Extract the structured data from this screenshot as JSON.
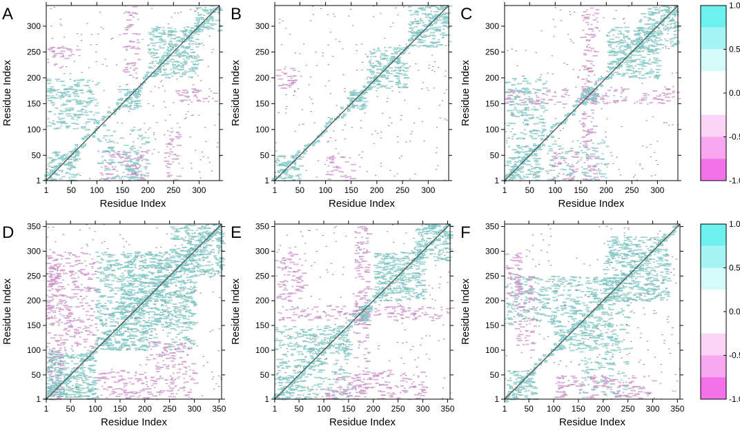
{
  "figure": {
    "colorbars": [
      {
        "ticks": [
          {
            "value": 1.0,
            "label": "1.0"
          },
          {
            "value": 0.5,
            "label": "0.5"
          },
          {
            "value": 0.0,
            "label": "0.0"
          },
          {
            "value": -0.5,
            "label": "-0.5"
          },
          {
            "value": -1.0,
            "label": "-1.0"
          }
        ],
        "bands": [
          {
            "from": 0.75,
            "to": 1.0,
            "color": "#6ef0ef"
          },
          {
            "from": 0.5,
            "to": 0.75,
            "color": "#a3f4f3"
          },
          {
            "from": 0.25,
            "to": 0.5,
            "color": "#d4faf9"
          },
          {
            "from": -0.25,
            "to": 0.25,
            "color": "#ffffff"
          },
          {
            "from": -0.5,
            "to": -0.25,
            "color": "#fbd3f7"
          },
          {
            "from": -0.75,
            "to": -0.5,
            "color": "#f7a6ef"
          },
          {
            "from": -1.0,
            "to": -0.75,
            "color": "#f371ea"
          }
        ]
      },
      {
        "ticks": [
          {
            "value": 1.0,
            "label": "1.0"
          },
          {
            "value": 0.5,
            "label": "0.5"
          },
          {
            "value": 0.0,
            "label": "0.0"
          },
          {
            "value": -0.5,
            "label": "-0.5"
          },
          {
            "value": -1.0,
            "label": "-1.0"
          }
        ],
        "bands": [
          {
            "from": 0.75,
            "to": 1.0,
            "color": "#6ef0ef"
          },
          {
            "from": 0.5,
            "to": 0.75,
            "color": "#a3f4f3"
          },
          {
            "from": 0.25,
            "to": 0.5,
            "color": "#d4faf9"
          },
          {
            "from": -0.25,
            "to": 0.25,
            "color": "#ffffff"
          },
          {
            "from": -0.5,
            "to": -0.25,
            "color": "#fbd3f7"
          },
          {
            "from": -0.75,
            "to": -0.5,
            "color": "#f7a6ef"
          },
          {
            "from": -1.0,
            "to": -0.75,
            "color": "#f371ea"
          }
        ]
      }
    ],
    "colors": {
      "positive": "#8fe8e6",
      "positive_edge": "#6a9e9c",
      "negative": "#e7a8e3",
      "negative_edge": "#b07cac",
      "diagonal": "#555555",
      "axis": "#000000"
    }
  },
  "chart_data": [
    {
      "type": "heatmap",
      "panel_label": "A",
      "xlabel": "Residue Index",
      "ylabel": "Residue Index",
      "xlim": [
        1,
        340
      ],
      "ylim": [
        1,
        340
      ],
      "xticks": [
        {
          "value": 1,
          "label": "1"
        },
        {
          "value": 50,
          "label": "50"
        },
        {
          "value": 100,
          "label": "100"
        },
        {
          "value": 150,
          "label": "150"
        },
        {
          "value": 200,
          "label": "200"
        },
        {
          "value": 250,
          "label": "250"
        },
        {
          "value": 300,
          "label": "300"
        }
      ],
      "yticks": [
        {
          "value": 1,
          "label": "1"
        },
        {
          "value": 50,
          "label": "50"
        },
        {
          "value": 100,
          "label": "100"
        },
        {
          "value": 150,
          "label": "150"
        },
        {
          "value": 200,
          "label": "200"
        },
        {
          "value": 250,
          "label": "250"
        },
        {
          "value": 300,
          "label": "300"
        }
      ],
      "positive_regions": [
        [
          1,
          60,
          1,
          60
        ],
        [
          140,
          180,
          140,
          180
        ],
        [
          200,
          300,
          200,
          300
        ],
        [
          290,
          340,
          290,
          340
        ],
        [
          1,
          100,
          100,
          200
        ],
        [
          150,
          180,
          1,
          60
        ]
      ],
      "negative_regions": [
        [
          150,
          180,
          200,
          340
        ],
        [
          230,
          260,
          1,
          100
        ],
        [
          100,
          200,
          1,
          60
        ],
        [
          1,
          60,
          220,
          260
        ],
        [
          250,
          340,
          150,
          180
        ]
      ]
    },
    {
      "type": "heatmap",
      "panel_label": "B",
      "xlabel": "Residue Index",
      "ylabel": "Residue Index",
      "xlim": [
        1,
        340
      ],
      "ylim": [
        1,
        340
      ],
      "xticks": [
        {
          "value": 1,
          "label": "1"
        },
        {
          "value": 50,
          "label": "50"
        },
        {
          "value": 100,
          "label": "100"
        },
        {
          "value": 150,
          "label": "150"
        },
        {
          "value": 200,
          "label": "200"
        },
        {
          "value": 250,
          "label": "250"
        },
        {
          "value": 300,
          "label": "300"
        }
      ],
      "yticks": [
        {
          "value": 1,
          "label": "1"
        },
        {
          "value": 50,
          "label": "50"
        },
        {
          "value": 100,
          "label": "100"
        },
        {
          "value": 150,
          "label": "150"
        },
        {
          "value": 200,
          "label": "200"
        },
        {
          "value": 250,
          "label": "250"
        },
        {
          "value": 300,
          "label": "300"
        }
      ],
      "positive_regions": [
        [
          1,
          50,
          1,
          50
        ],
        [
          140,
          180,
          140,
          180
        ],
        [
          180,
          260,
          180,
          260
        ],
        [
          260,
          340,
          260,
          340
        ]
      ],
      "negative_regions": [
        [
          100,
          150,
          1,
          50
        ],
        [
          1,
          40,
          180,
          220
        ]
      ]
    },
    {
      "type": "heatmap",
      "panel_label": "C",
      "xlabel": "Residue Index",
      "ylabel": "Residue Index",
      "xlim": [
        1,
        340
      ],
      "ylim": [
        1,
        340
      ],
      "xticks": [
        {
          "value": 1,
          "label": "1"
        },
        {
          "value": 50,
          "label": "50"
        },
        {
          "value": 100,
          "label": "100"
        },
        {
          "value": 150,
          "label": "150"
        },
        {
          "value": 200,
          "label": "200"
        },
        {
          "value": 250,
          "label": "250"
        },
        {
          "value": 300,
          "label": "300"
        }
      ],
      "yticks": [
        {
          "value": 1,
          "label": "1"
        },
        {
          "value": 50,
          "label": "50"
        },
        {
          "value": 100,
          "label": "100"
        },
        {
          "value": 150,
          "label": "150"
        },
        {
          "value": 200,
          "label": "200"
        },
        {
          "value": 250,
          "label": "250"
        },
        {
          "value": 300,
          "label": "300"
        }
      ],
      "positive_regions": [
        [
          1,
          70,
          1,
          70
        ],
        [
          150,
          180,
          150,
          180
        ],
        [
          200,
          300,
          200,
          300
        ],
        [
          280,
          340,
          260,
          340
        ],
        [
          1,
          80,
          80,
          200
        ]
      ],
      "negative_regions": [
        [
          150,
          180,
          1,
          340
        ],
        [
          1,
          340,
          150,
          180
        ],
        [
          90,
          140,
          1,
          60
        ]
      ]
    },
    {
      "type": "heatmap",
      "panel_label": "D",
      "xlabel": "Residue Index",
      "ylabel": "Residue Index",
      "xlim": [
        1,
        355
      ],
      "ylim": [
        1,
        355
      ],
      "xticks": [
        {
          "value": 1,
          "label": "1"
        },
        {
          "value": 50,
          "label": "50"
        },
        {
          "value": 100,
          "label": "100"
        },
        {
          "value": 150,
          "label": "150"
        },
        {
          "value": 200,
          "label": "200"
        },
        {
          "value": 250,
          "label": "250"
        },
        {
          "value": 300,
          "label": "300"
        },
        {
          "value": 350,
          "label": "350"
        }
      ],
      "yticks": [
        {
          "value": 1,
          "label": "1"
        },
        {
          "value": 50,
          "label": "50"
        },
        {
          "value": 100,
          "label": "100"
        },
        {
          "value": 150,
          "label": "150"
        },
        {
          "value": 200,
          "label": "200"
        },
        {
          "value": 250,
          "label": "250"
        },
        {
          "value": 300,
          "label": "300"
        },
        {
          "value": 350,
          "label": "350"
        }
      ],
      "positive_regions": [
        [
          1,
          100,
          1,
          100
        ],
        [
          100,
          200,
          100,
          200
        ],
        [
          150,
          300,
          150,
          300
        ],
        [
          250,
          355,
          250,
          355
        ],
        [
          1,
          100,
          1,
          30
        ],
        [
          100,
          250,
          200,
          300
        ]
      ],
      "negative_regions": [
        [
          1,
          30,
          1,
          300
        ],
        [
          100,
          300,
          1,
          60
        ],
        [
          1,
          100,
          150,
          300
        ],
        [
          30,
          100,
          100,
          150
        ],
        [
          200,
          300,
          60,
          120
        ]
      ]
    },
    {
      "type": "heatmap",
      "panel_label": "E",
      "xlabel": "Residue Index",
      "ylabel": "Residue Index",
      "xlim": [
        1,
        355
      ],
      "ylim": [
        1,
        355
      ],
      "xticks": [
        {
          "value": 1,
          "label": "1"
        },
        {
          "value": 50,
          "label": "50"
        },
        {
          "value": 100,
          "label": "100"
        },
        {
          "value": 150,
          "label": "150"
        },
        {
          "value": 200,
          "label": "200"
        },
        {
          "value": 250,
          "label": "250"
        },
        {
          "value": 300,
          "label": "300"
        },
        {
          "value": 350,
          "label": "350"
        }
      ],
      "yticks": [
        {
          "value": 1,
          "label": "1"
        },
        {
          "value": 50,
          "label": "50"
        },
        {
          "value": 100,
          "label": "100"
        },
        {
          "value": 150,
          "label": "150"
        },
        {
          "value": 200,
          "label": "200"
        },
        {
          "value": 250,
          "label": "250"
        },
        {
          "value": 300,
          "label": "300"
        },
        {
          "value": 350,
          "label": "350"
        }
      ],
      "positive_regions": [
        [
          1,
          60,
          1,
          60
        ],
        [
          90,
          150,
          90,
          150
        ],
        [
          160,
          190,
          160,
          190
        ],
        [
          200,
          300,
          200,
          300
        ],
        [
          280,
          355,
          280,
          355
        ],
        [
          1,
          90,
          60,
          150
        ]
      ],
      "negative_regions": [
        [
          160,
          190,
          1,
          355
        ],
        [
          1,
          355,
          160,
          190
        ],
        [
          100,
          300,
          1,
          60
        ],
        [
          1,
          60,
          200,
          300
        ]
      ]
    },
    {
      "type": "heatmap",
      "panel_label": "F",
      "xlabel": "Residue Index",
      "ylabel": "Residue Index",
      "xlim": [
        1,
        355
      ],
      "ylim": [
        1,
        355
      ],
      "xticks": [
        {
          "value": 1,
          "label": "1"
        },
        {
          "value": 50,
          "label": "50"
        },
        {
          "value": 100,
          "label": "100"
        },
        {
          "value": 150,
          "label": "150"
        },
        {
          "value": 200,
          "label": "200"
        },
        {
          "value": 250,
          "label": "250"
        },
        {
          "value": 300,
          "label": "300"
        },
        {
          "value": 350,
          "label": "350"
        }
      ],
      "yticks": [
        {
          "value": 1,
          "label": "1"
        },
        {
          "value": 50,
          "label": "50"
        },
        {
          "value": 100,
          "label": "100"
        },
        {
          "value": 150,
          "label": "150"
        },
        {
          "value": 200,
          "label": "200"
        },
        {
          "value": 250,
          "label": "250"
        },
        {
          "value": 300,
          "label": "300"
        },
        {
          "value": 350,
          "label": "350"
        }
      ],
      "positive_regions": [
        [
          1,
          60,
          1,
          60
        ],
        [
          100,
          250,
          100,
          250
        ],
        [
          200,
          330,
          200,
          330
        ],
        [
          1,
          100,
          150,
          250
        ]
      ],
      "negative_regions": [
        [
          20,
          60,
          100,
          250
        ],
        [
          100,
          300,
          1,
          50
        ],
        [
          1,
          30,
          200,
          300
        ]
      ]
    }
  ]
}
